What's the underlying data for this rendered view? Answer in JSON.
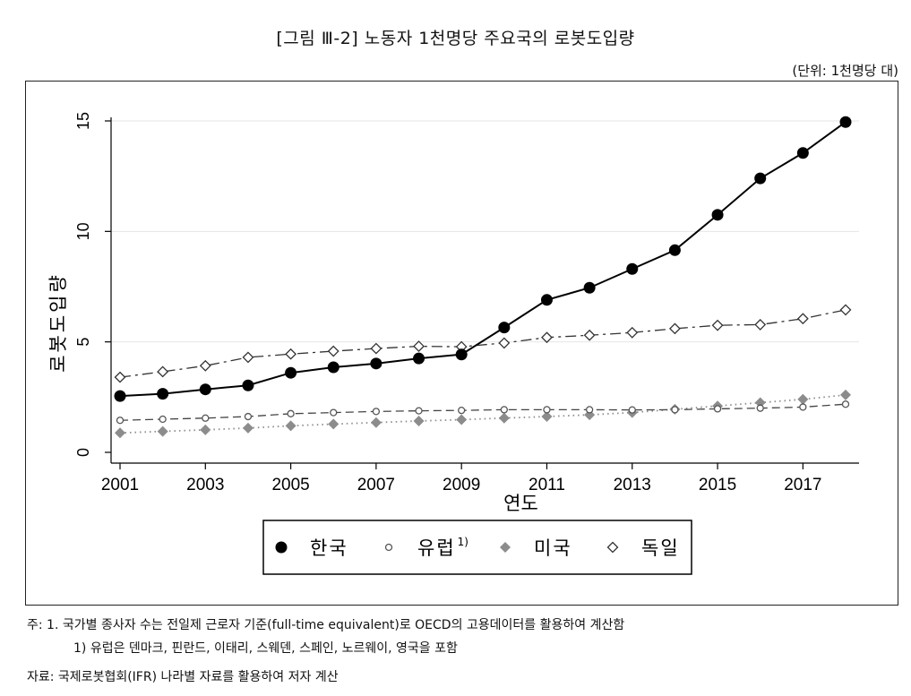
{
  "title": "[그림 Ⅲ-2] 노동자 1천명당 주요국의 로봇도입량",
  "unit": "(단위: 1천명당 대)",
  "notes": {
    "line1": "주: 1. 국가별 종사자 수는 전일제 근로자 기준(full-time equivalent)로 OECD의 고용데이터를 활용하여 계산함",
    "line2": "1) 유럽은 덴마크, 핀란드, 이태리, 스웨덴, 스페인, 노르웨이, 영국을 포함"
  },
  "source": "자료: 국제로봇협회(IFR) 나라별 자료를 활용하여 저자 계산",
  "chart_data": {
    "type": "line",
    "xlabel": "연도",
    "ylabel": "로봇도입량",
    "xlim": [
      2001,
      2018
    ],
    "ylim": [
      0,
      15
    ],
    "xticks": [
      2001,
      2003,
      2005,
      2007,
      2009,
      2011,
      2013,
      2015,
      2017
    ],
    "yticks": [
      0,
      5,
      10,
      15
    ],
    "grid": true,
    "legend_position": "bottom",
    "x": [
      2001,
      2002,
      2003,
      2004,
      2005,
      2006,
      2007,
      2008,
      2009,
      2010,
      2011,
      2012,
      2013,
      2014,
      2015,
      2016,
      2017,
      2018
    ],
    "series": [
      {
        "name": "한국",
        "marker": "filled-circle",
        "line": "solid",
        "color": "#000000",
        "values": [
          2.55,
          2.65,
          2.85,
          3.03,
          3.6,
          3.85,
          4.02,
          4.25,
          4.43,
          5.65,
          6.9,
          7.45,
          8.3,
          9.15,
          10.75,
          12.4,
          13.55,
          14.95
        ]
      },
      {
        "name": "유럽",
        "sup": "1)",
        "marker": "hollow-circle",
        "line": "dashed",
        "color": "#444444",
        "values": [
          1.45,
          1.5,
          1.55,
          1.62,
          1.75,
          1.8,
          1.85,
          1.88,
          1.9,
          1.93,
          1.93,
          1.93,
          1.92,
          1.93,
          1.97,
          2.0,
          2.05,
          2.18
        ]
      },
      {
        "name": "미국",
        "marker": "filled-diamond",
        "line": "dotted",
        "color": "#8c8c8c",
        "values": [
          0.88,
          0.95,
          1.02,
          1.1,
          1.2,
          1.28,
          1.35,
          1.42,
          1.48,
          1.55,
          1.62,
          1.7,
          1.8,
          1.95,
          2.1,
          2.25,
          2.4,
          2.6
        ]
      },
      {
        "name": "독일",
        "marker": "hollow-diamond",
        "line": "dashdot",
        "color": "#333333",
        "values": [
          3.4,
          3.65,
          3.92,
          4.3,
          4.45,
          4.58,
          4.7,
          4.8,
          4.78,
          4.95,
          5.2,
          5.3,
          5.42,
          5.6,
          5.75,
          5.78,
          6.05,
          6.45
        ]
      }
    ]
  }
}
